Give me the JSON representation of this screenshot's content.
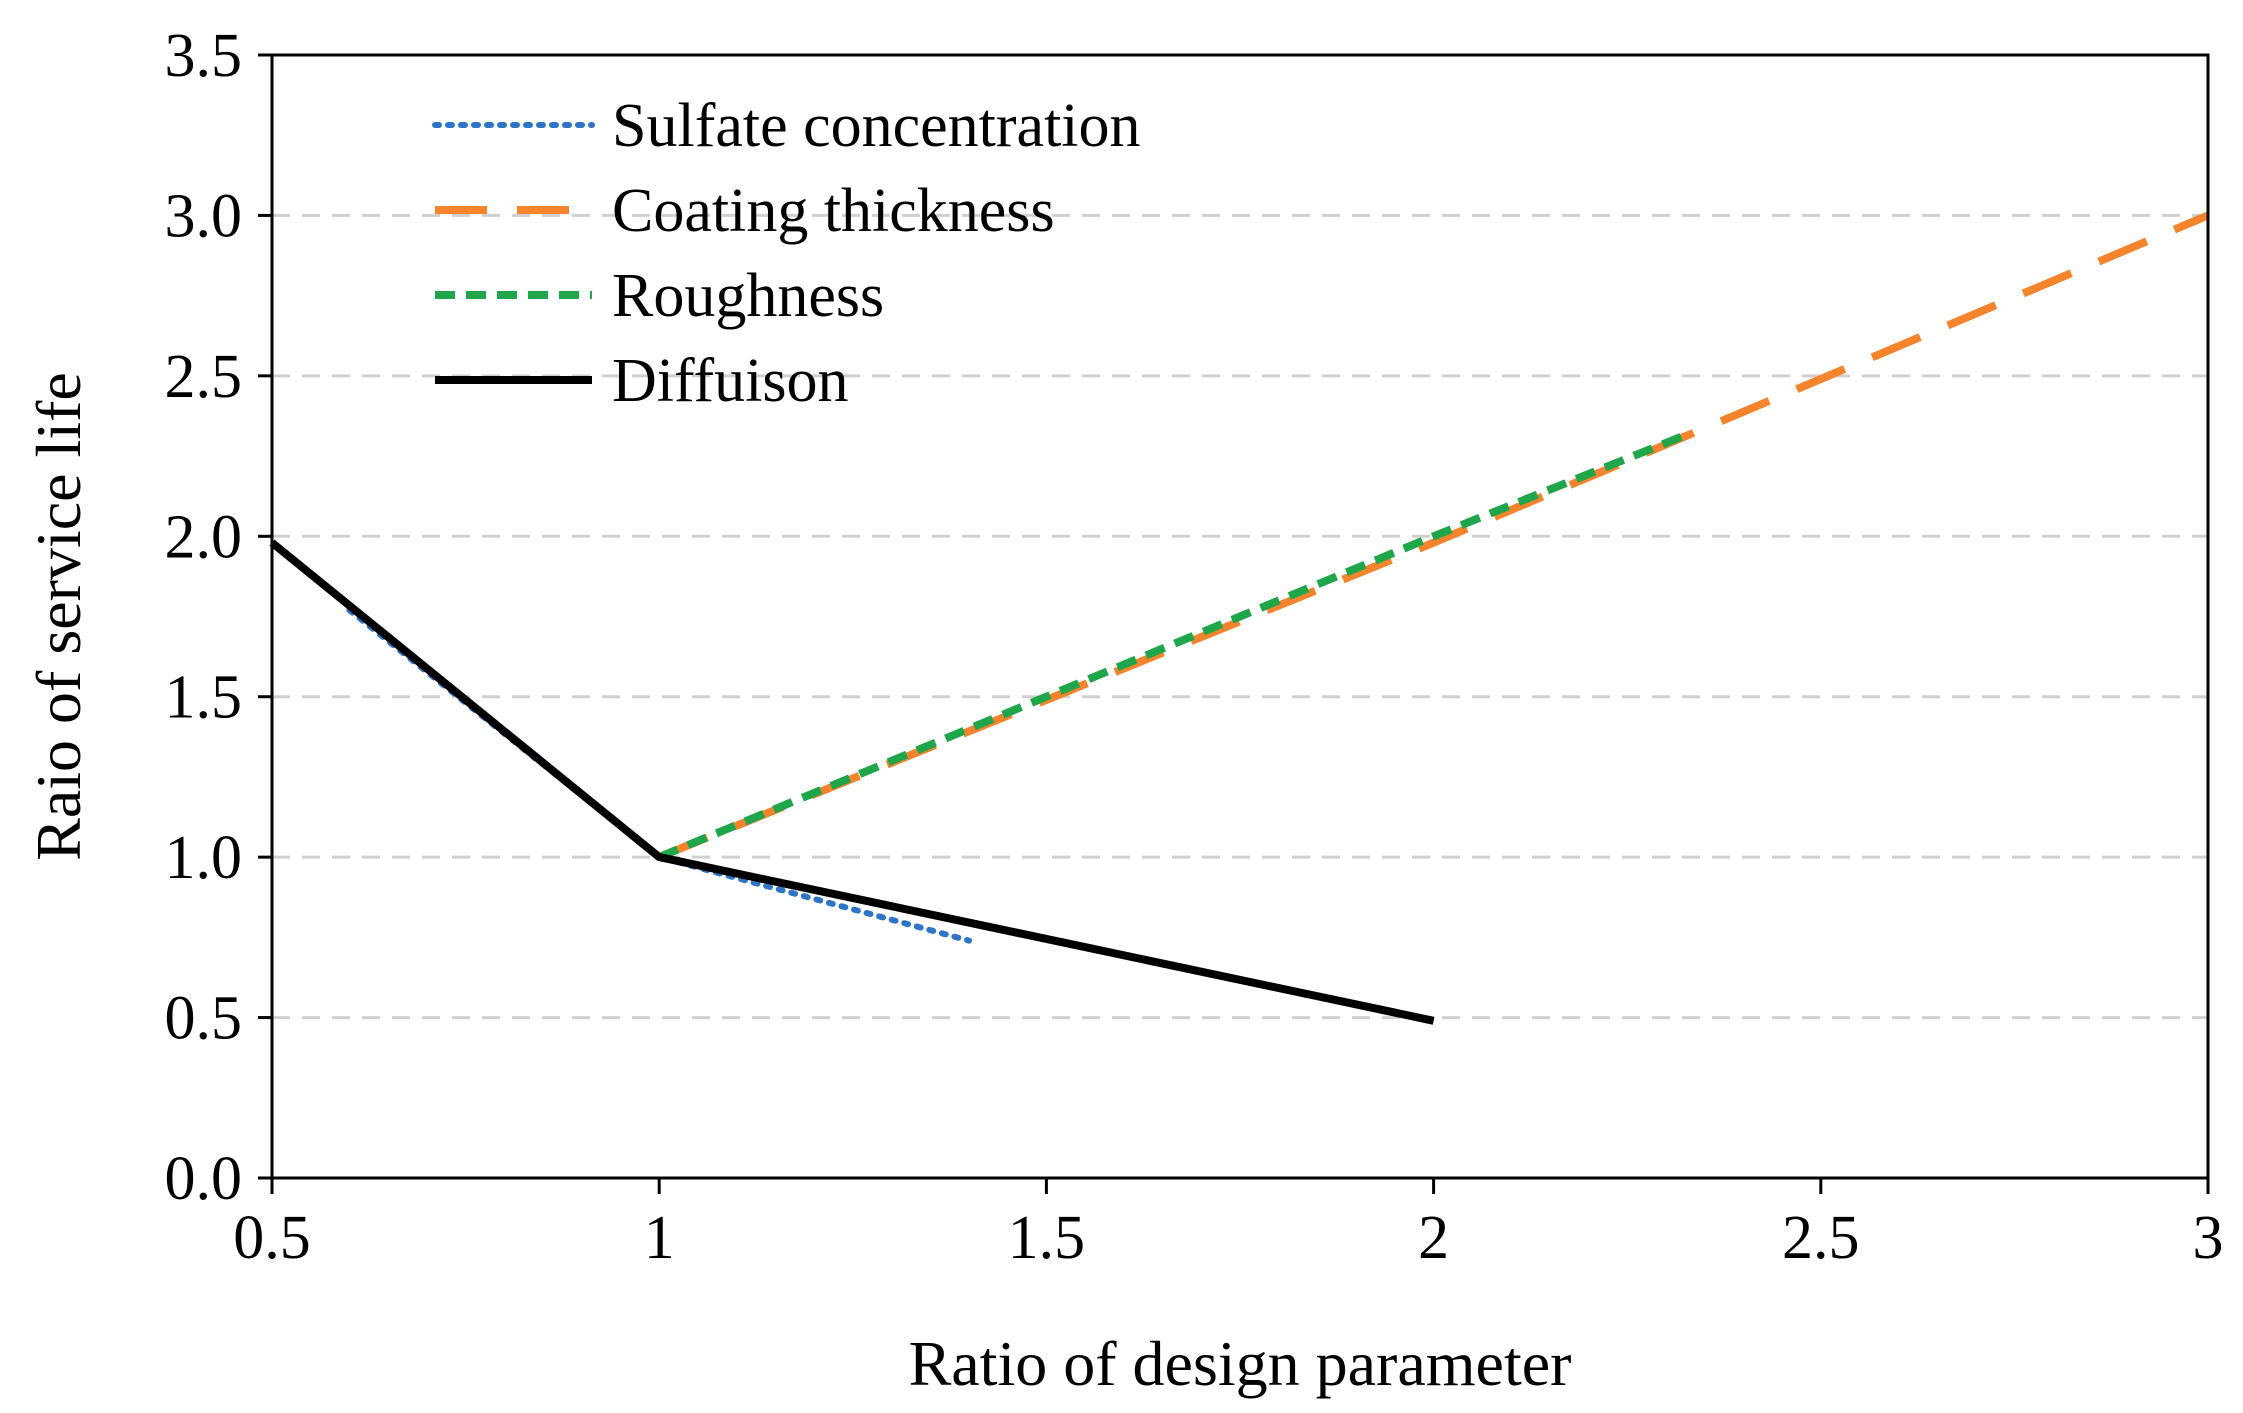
{
  "chart_data": {
    "type": "line",
    "title": "",
    "xlabel": "Ratio of design parameter",
    "ylabel": "Raio of service life",
    "xlim": [
      0.5,
      3
    ],
    "ylim": [
      0,
      3.5
    ],
    "x_ticks": [
      0.5,
      1,
      1.5,
      2,
      2.5,
      3
    ],
    "x_tick_labels": [
      "0.5",
      "1",
      "1.5",
      "2",
      "2.5",
      "3"
    ],
    "y_ticks": [
      0,
      0.5,
      1,
      1.5,
      2,
      2.5,
      3,
      3.5
    ],
    "y_tick_labels": [
      "0.0",
      "0.5",
      "1.0",
      "1.5",
      "2.0",
      "2.5",
      "3.0",
      "3.5"
    ],
    "grid": "horizontal dashed",
    "legend_position": "top-left",
    "series": [
      {
        "name": "Sulfate concentration",
        "style": "dotted",
        "color": "#2e75c7",
        "x": [
          0.6,
          1.0,
          1.4
        ],
        "y": [
          1.77,
          1.0,
          0.74
        ]
      },
      {
        "name": "Coating thickness",
        "style": "long-dash",
        "color": "#f5842d",
        "x": [
          1.0,
          2.0,
          3.0
        ],
        "y": [
          1.0,
          1.98,
          3.0
        ]
      },
      {
        "name": "Roughness",
        "style": "short-dash",
        "color": "#1fa64a",
        "x": [
          1.0,
          2.0,
          2.33
        ],
        "y": [
          1.0,
          2.0,
          2.32
        ]
      },
      {
        "name": "Diffuison",
        "style": "solid",
        "color": "#000000",
        "x": [
          0.5,
          1.0,
          2.0
        ],
        "y": [
          1.98,
          1.0,
          0.49
        ]
      }
    ]
  }
}
